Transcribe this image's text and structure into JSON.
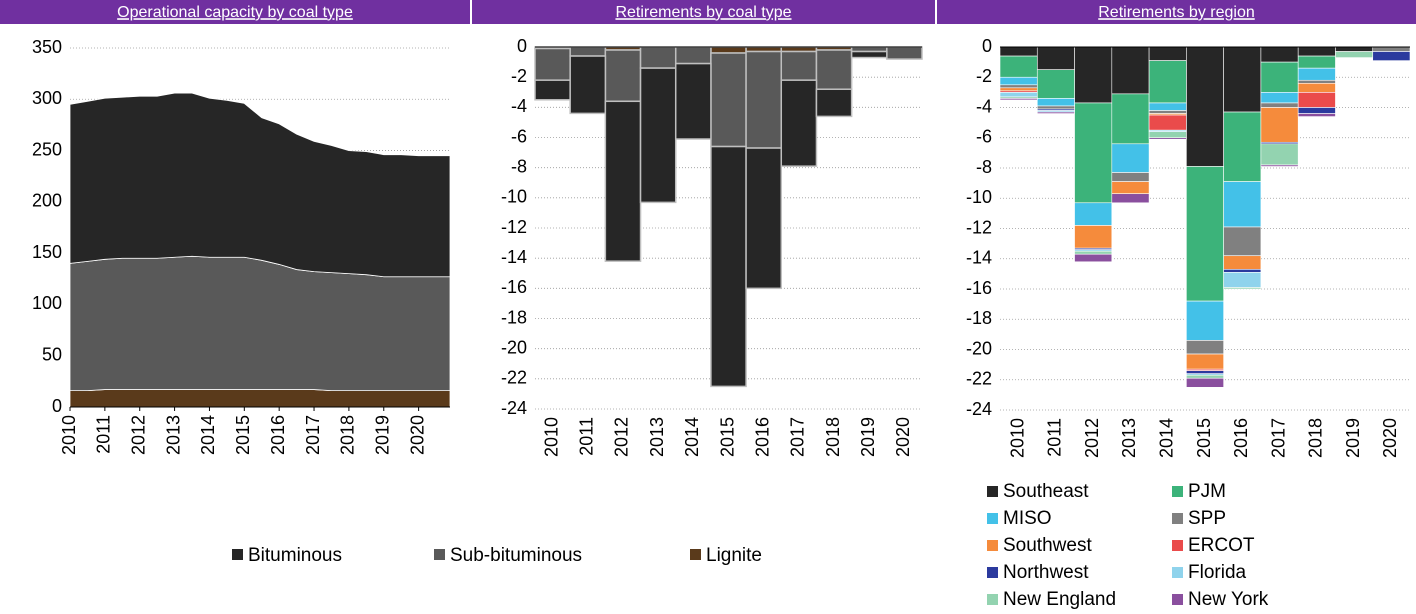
{
  "chart_data": [
    {
      "type": "area",
      "title": "Operational capacity by coal type",
      "x": [
        2010,
        2010.5,
        2011,
        2011.5,
        2012,
        2012.5,
        2013,
        2013.5,
        2014,
        2014.5,
        2015,
        2015.5,
        2016,
        2016.5,
        2017,
        2017.5,
        2018,
        2018.5,
        2019,
        2019.5,
        2020,
        2020.5,
        2020.9
      ],
      "series": [
        {
          "name": "Bituminous",
          "color": "#262626",
          "values": [
            155,
            156,
            157,
            157,
            158,
            158,
            160,
            159,
            155,
            153,
            150,
            139,
            137,
            132,
            127,
            124,
            120,
            120,
            119,
            119,
            118,
            118,
            118
          ]
        },
        {
          "name": "Sub-bituminous",
          "color": "#595959",
          "values": [
            124,
            126,
            127,
            128,
            128,
            128,
            129,
            130,
            129,
            129,
            129,
            126,
            122,
            117,
            115,
            115,
            114,
            113,
            111,
            111,
            111,
            111,
            111
          ]
        },
        {
          "name": "Lignite",
          "color": "#5a3a1b",
          "values": [
            16,
            16,
            17,
            17,
            17,
            17,
            17,
            17,
            17,
            17,
            17,
            17,
            17,
            17,
            17,
            16,
            16,
            16,
            16,
            16,
            16,
            16,
            16
          ]
        }
      ],
      "xlim": [
        2010,
        2020.9
      ],
      "xticks": [
        2010,
        2011,
        2012,
        2013,
        2014,
        2015,
        2016,
        2017,
        2018,
        2019,
        2020
      ],
      "ylim": [
        0,
        350
      ],
      "yticks": [
        0,
        50,
        100,
        150,
        200,
        250,
        300,
        350
      ],
      "grid": true
    },
    {
      "type": "bar",
      "title": "Retirements by coal type",
      "categories": [
        "2010",
        "2011",
        "2012",
        "2013",
        "2014",
        "2015",
        "2016",
        "2017",
        "2018",
        "2019",
        "2020"
      ],
      "series": [
        {
          "name": "Lignite",
          "color": "#5a3a1b",
          "values": [
            -0.1,
            0,
            -0.2,
            0,
            0,
            -0.4,
            -0.3,
            -0.3,
            -0.2,
            0,
            0
          ]
        },
        {
          "name": "Sub-bituminous",
          "color": "#595959",
          "values": [
            -2.1,
            -0.6,
            -3.4,
            -1.4,
            -1.1,
            -6.2,
            -6.4,
            -1.9,
            -2.6,
            -0.3,
            -0.8
          ]
        },
        {
          "name": "Bituminous",
          "color": "#262626",
          "values": [
            -1.3,
            -3.8,
            -10.6,
            -8.9,
            -5.0,
            -15.9,
            -9.3,
            -5.7,
            -1.8,
            -0.4,
            0
          ]
        }
      ],
      "ylim": [
        -24,
        0
      ],
      "yticks": [
        0,
        -2,
        -4,
        -6,
        -8,
        -10,
        -12,
        -14,
        -16,
        -18,
        -20,
        -22,
        -24
      ],
      "grid": true
    },
    {
      "type": "bar",
      "title": "Retirements by region",
      "categories": [
        "2010",
        "2011",
        "2012",
        "2013",
        "2014",
        "2015",
        "2016",
        "2017",
        "2018",
        "2019",
        "2020"
      ],
      "series": [
        {
          "name": "Southeast",
          "color": "#262626",
          "values": [
            -0.6,
            -1.5,
            -3.7,
            -3.1,
            -0.9,
            -7.9,
            -4.3,
            -1.0,
            -0.6,
            -0.3,
            0
          ]
        },
        {
          "name": "PJM",
          "color": "#3cb37a",
          "values": [
            -1.4,
            -1.9,
            -6.6,
            -3.3,
            -2.8,
            -8.9,
            -4.6,
            -2.0,
            -0.8,
            0,
            0
          ]
        },
        {
          "name": "MISO",
          "color": "#43c1e8",
          "values": [
            -0.5,
            -0.5,
            -1.5,
            -1.9,
            -0.5,
            -2.6,
            -3.0,
            -0.7,
            -0.8,
            0,
            0
          ]
        },
        {
          "name": "SPP",
          "color": "#808080",
          "values": [
            -0.2,
            -0.2,
            0,
            -0.6,
            -0.2,
            -0.9,
            -1.9,
            -0.3,
            -0.2,
            0,
            -0.3
          ]
        },
        {
          "name": "Southwest",
          "color": "#f58b3c",
          "values": [
            -0.2,
            0,
            -1.5,
            -0.8,
            -0.1,
            -1.0,
            -0.9,
            -2.3,
            -0.6,
            0,
            0
          ]
        },
        {
          "name": "ERCOT",
          "color": "#ea4b4b",
          "values": [
            -0.1,
            0,
            0,
            0,
            -1.0,
            -0.1,
            0,
            0,
            -1.0,
            0,
            0
          ]
        },
        {
          "name": "Northwest",
          "color": "#2b3a9e",
          "values": [
            0,
            -0.1,
            -0.1,
            0,
            0,
            -0.2,
            -0.2,
            -0.1,
            -0.4,
            0,
            -0.6
          ]
        },
        {
          "name": "Florida",
          "color": "#8fd3ec",
          "values": [
            -0.3,
            -0.1,
            -0.1,
            0,
            -0.1,
            -0.1,
            -1.0,
            0,
            0,
            0,
            0
          ]
        },
        {
          "name": "New England",
          "color": "#93d3b0",
          "values": [
            -0.1,
            0,
            -0.2,
            0,
            -0.4,
            -0.2,
            -0.1,
            -1.4,
            0,
            -0.4,
            0
          ]
        },
        {
          "name": "New York",
          "color": "#8a4f9e",
          "values": [
            -0.1,
            -0.1,
            -0.5,
            -0.6,
            -0.1,
            -0.6,
            0,
            -0.1,
            -0.2,
            0,
            0
          ]
        }
      ],
      "ylim": [
        -24,
        0
      ],
      "yticks": [
        0,
        -2,
        -4,
        -6,
        -8,
        -10,
        -12,
        -14,
        -16,
        -18,
        -20,
        -22,
        -24
      ],
      "grid": true
    }
  ]
}
